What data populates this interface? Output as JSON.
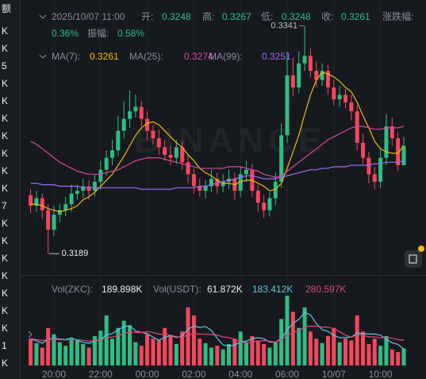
{
  "side_column": [
    "额",
    "K",
    "K",
    "5",
    "K",
    "K",
    "K",
    "K",
    "K",
    "K",
    "K",
    "7",
    "K",
    "K",
    "K",
    "K",
    "K",
    "K",
    "K",
    "1",
    "K"
  ],
  "chart_data": {
    "type": "candlestick",
    "header": {
      "time": "2025/10/07 11:00",
      "open_label": "开:",
      "high_label": "高:",
      "low_label": "低:",
      "close_label": "收:",
      "change_label": "涨跌幅:",
      "change": "0.36%",
      "amplitude_label": "振幅:",
      "amplitude": "0.58%"
    },
    "watermark": "BINANCE",
    "categories": [
      null,
      null,
      null,
      null,
      "20:00",
      null,
      null,
      null,
      null,
      null,
      null,
      null,
      "22:00",
      null,
      null,
      null,
      null,
      null,
      null,
      null,
      "00:00",
      null,
      null,
      null,
      null,
      null,
      null,
      null,
      "02:00",
      null,
      null,
      null,
      null,
      null,
      null,
      null,
      "04:00",
      null,
      null,
      null,
      null,
      null,
      null,
      null,
      "06:00",
      null,
      null,
      null,
      null,
      null,
      null,
      null,
      "10/07",
      null,
      null,
      null,
      null,
      null,
      null,
      null,
      "10:00",
      null,
      null,
      null,
      null
    ],
    "open": [
      0.3228,
      0.3221,
      0.3226,
      0.3218,
      0.3205,
      0.3215,
      0.3218,
      0.3222,
      0.3229,
      0.3231,
      0.3234,
      0.3231,
      0.3237,
      0.3245,
      0.3253,
      0.3258,
      0.3271,
      0.3279,
      0.3284,
      0.3287,
      0.3279,
      0.3271,
      0.3266,
      0.326,
      0.3255,
      0.3253,
      0.326,
      0.325,
      0.3242,
      0.3234,
      0.3231,
      0.3234,
      0.3239,
      0.3234,
      0.3237,
      0.3239,
      0.3231,
      0.3242,
      0.3245,
      0.3231,
      0.3223,
      0.3218,
      0.3226,
      0.3237,
      0.3268,
      0.3308,
      0.33,
      0.3316,
      0.3321,
      0.3311,
      0.3305,
      0.3311,
      0.33,
      0.3292,
      0.3295,
      0.329,
      0.3284,
      0.3263,
      0.3253,
      0.3242,
      0.3237,
      0.3253,
      0.3274,
      0.3266,
      0.3248
    ],
    "high": [
      0.3232,
      0.3231,
      0.3229,
      0.3222,
      0.3221,
      0.3222,
      0.3227,
      0.3235,
      0.3235,
      0.3239,
      0.3238,
      0.3242,
      0.3251,
      0.3258,
      0.3265,
      0.3281,
      0.3291,
      0.3298,
      0.3295,
      0.3291,
      0.3284,
      0.3275,
      0.3272,
      0.3265,
      0.3261,
      0.3265,
      0.3264,
      0.3255,
      0.3246,
      0.3239,
      0.3238,
      0.3245,
      0.3243,
      0.3242,
      0.3245,
      0.3243,
      0.3247,
      0.3251,
      0.3249,
      0.3235,
      0.3228,
      0.323,
      0.3243,
      0.3276,
      0.3324,
      0.332,
      0.3324,
      0.3341,
      0.3326,
      0.3317,
      0.3316,
      0.3315,
      0.3305,
      0.3301,
      0.3299,
      0.3295,
      0.3288,
      0.3269,
      0.3257,
      0.3247,
      0.3259,
      0.3282,
      0.328,
      0.327,
      0.3267
    ],
    "low": [
      0.3216,
      0.3217,
      0.3212,
      0.3189,
      0.3201,
      0.321,
      0.3214,
      0.3217,
      0.3225,
      0.3226,
      0.3225,
      0.3227,
      0.3232,
      0.3241,
      0.3248,
      0.3254,
      0.3266,
      0.3273,
      0.328,
      0.3274,
      0.3265,
      0.3262,
      0.3255,
      0.3251,
      0.3248,
      0.3249,
      0.3245,
      0.3236,
      0.3229,
      0.3227,
      0.3226,
      0.323,
      0.3229,
      0.323,
      0.3232,
      0.3225,
      0.3227,
      0.3237,
      0.3227,
      0.3217,
      0.3213,
      0.3214,
      0.3221,
      0.3233,
      0.3263,
      0.3294,
      0.3296,
      0.3311,
      0.3307,
      0.33,
      0.3301,
      0.3295,
      0.3288,
      0.3287,
      0.3286,
      0.3278,
      0.3258,
      0.3249,
      0.3236,
      0.3232,
      0.3233,
      0.3248,
      0.3261,
      0.3244,
      0.3248
    ],
    "close": [
      0.3221,
      0.3226,
      0.3218,
      0.3205,
      0.3215,
      0.3218,
      0.3222,
      0.3229,
      0.3231,
      0.3234,
      0.3231,
      0.3237,
      0.3245,
      0.3253,
      0.3258,
      0.3271,
      0.3279,
      0.3284,
      0.3287,
      0.3279,
      0.3271,
      0.3266,
      0.326,
      0.3255,
      0.3253,
      0.326,
      0.325,
      0.3242,
      0.3234,
      0.3231,
      0.3234,
      0.3239,
      0.3234,
      0.3237,
      0.3239,
      0.3231,
      0.3242,
      0.3245,
      0.3231,
      0.3223,
      0.3218,
      0.3226,
      0.3237,
      0.3268,
      0.3308,
      0.33,
      0.3316,
      0.3321,
      0.3311,
      0.3305,
      0.3311,
      0.33,
      0.3292,
      0.3295,
      0.329,
      0.3284,
      0.3263,
      0.3253,
      0.3242,
      0.3237,
      0.3253,
      0.3274,
      0.3266,
      0.3248,
      0.3261
    ],
    "up_color": "#2ebd85",
    "down_color": "#f6465d",
    "ylim": [
      0.3178,
      0.3353
    ],
    "ma_series": [
      {
        "name": "MA(7):",
        "color": "#f0b90b",
        "values": [
          0.3222,
          0.3222,
          0.3221,
          0.3219,
          0.3218,
          0.3217,
          0.3218,
          0.3219,
          0.3221,
          0.3225,
          0.3227,
          0.323,
          0.3234,
          0.3238,
          0.3242,
          0.3248,
          0.3254,
          0.3261,
          0.3268,
          0.3273,
          0.3276,
          0.3277,
          0.3275,
          0.3271,
          0.3267,
          0.3263,
          0.326,
          0.3255,
          0.3251,
          0.3246,
          0.3243,
          0.3241,
          0.3238,
          0.3236,
          0.3236,
          0.3235,
          0.3237,
          0.3238,
          0.3238,
          0.3236,
          0.3234,
          0.3231,
          0.3232,
          0.3236,
          0.3246,
          0.3257,
          0.3268,
          0.3282,
          0.3295,
          0.3305,
          0.331,
          0.3309,
          0.3307,
          0.3304,
          0.33,
          0.3297,
          0.329,
          0.3281,
          0.3273,
          0.3264,
          0.3259,
          0.3257,
          0.3256,
          0.3256,
          0.3261
        ]
      },
      {
        "name": "MA(25):",
        "color": "#d9479f",
        "values": [
          0.3264,
          0.3262,
          0.3259,
          0.3256,
          0.3253,
          0.325,
          0.3248,
          0.3246,
          0.3244,
          0.3243,
          0.3242,
          0.3242,
          0.3242,
          0.3243,
          0.3244,
          0.3245,
          0.3247,
          0.3249,
          0.3251,
          0.3252,
          0.3253,
          0.3253,
          0.3253,
          0.3252,
          0.3251,
          0.325,
          0.3249,
          0.3248,
          0.3247,
          0.3246,
          0.3246,
          0.3246,
          0.3246,
          0.3246,
          0.3247,
          0.3247,
          0.3247,
          0.3246,
          0.3245,
          0.3244,
          0.3242,
          0.3241,
          0.324,
          0.3241,
          0.3244,
          0.3247,
          0.325,
          0.3253,
          0.3256,
          0.3259,
          0.3262,
          0.3265,
          0.3267,
          0.3269,
          0.3271,
          0.3273,
          0.3274,
          0.3274,
          0.3273,
          0.3272,
          0.3272,
          0.3273,
          0.3273,
          0.3273,
          0.3274
        ]
      },
      {
        "name": "MA(99):",
        "color": "#9b6ff0",
        "values": [
          0.3236,
          0.3236,
          0.3235,
          0.3235,
          0.3235,
          0.3234,
          0.3234,
          0.3234,
          0.3234,
          0.3233,
          0.3233,
          0.3233,
          0.3233,
          0.3233,
          0.3233,
          0.3233,
          0.3233,
          0.3233,
          0.3233,
          0.3232,
          0.3232,
          0.3232,
          0.3232,
          0.3232,
          0.3232,
          0.3233,
          0.3233,
          0.3233,
          0.3233,
          0.3234,
          0.3234,
          0.3235,
          0.3236,
          0.3237,
          0.3238,
          0.3239,
          0.324,
          0.3241,
          0.3241,
          0.324,
          0.3239,
          0.3239,
          0.3239,
          0.324,
          0.3241,
          0.3242,
          0.3243,
          0.3244,
          0.3245,
          0.3245,
          0.3246,
          0.3246,
          0.3247,
          0.3247,
          0.3247,
          0.3248,
          0.3248,
          0.3248,
          0.3248,
          0.3249,
          0.3249,
          0.325,
          0.325,
          0.325,
          0.3251
        ]
      }
    ],
    "volume": {
      "legend_label": "Vol(ZKC):",
      "legend_value": "189.898K",
      "usdt_label": "Vol(USDT):",
      "usdt_value": "61.872K",
      "ylim": [
        0,
        800
      ],
      "values": [
        300,
        250,
        200,
        420,
        350,
        260,
        220,
        300,
        280,
        240,
        200,
        330,
        390,
        560,
        300,
        420,
        500,
        450,
        260,
        220,
        350,
        300,
        280,
        420,
        330,
        240,
        380,
        650,
        560,
        300,
        250,
        200,
        220,
        180,
        240,
        300,
        380,
        260,
        330,
        280,
        240,
        200,
        260,
        520,
        780,
        600,
        420,
        650,
        380,
        300,
        250,
        330,
        420,
        260,
        300,
        280,
        560,
        380,
        240,
        300,
        220,
        330,
        180,
        150,
        189.898
      ],
      "ma_series": [
        {
          "label": "183.412K",
          "color": "#5ec7e6",
          "values": [
            300,
            275,
            250,
            293,
            304,
            296,
            290,
            310,
            282,
            260,
            248,
            270,
            288,
            344,
            356,
            400,
            434,
            446,
            386,
            370,
            356,
            316,
            282,
            314,
            336,
            314,
            330,
            408,
            440,
            426,
            436,
            392,
            306,
            230,
            218,
            228,
            264,
            272,
            302,
            310,
            300,
            262,
            262,
            300,
            400,
            472,
            516,
            594,
            566,
            470,
            400,
            382,
            336,
            312,
            312,
            318,
            364,
            356,
            352,
            352,
            340,
            294,
            254,
            236,
            183.412
          ]
        },
        {
          "label": "280.597K",
          "color": "#e0457b",
          "values": [
            300,
            290,
            280,
            290,
            295,
            290,
            285,
            290,
            290,
            282,
            272,
            280,
            285,
            310,
            318,
            330,
            360,
            375,
            370,
            368,
            380,
            370,
            350,
            350,
            340,
            322,
            320,
            340,
            360,
            352,
            350,
            346,
            340,
            320,
            312,
            290,
            264,
            252,
            266,
            272,
            280,
            270,
            262,
            288,
            340,
            370,
            390,
            430,
            440,
            440,
            430,
            430,
            410,
            380,
            340,
            316,
            345,
            340,
            320,
            320,
            310,
            315,
            305,
            290,
            280.597
          ]
        }
      ]
    }
  }
}
